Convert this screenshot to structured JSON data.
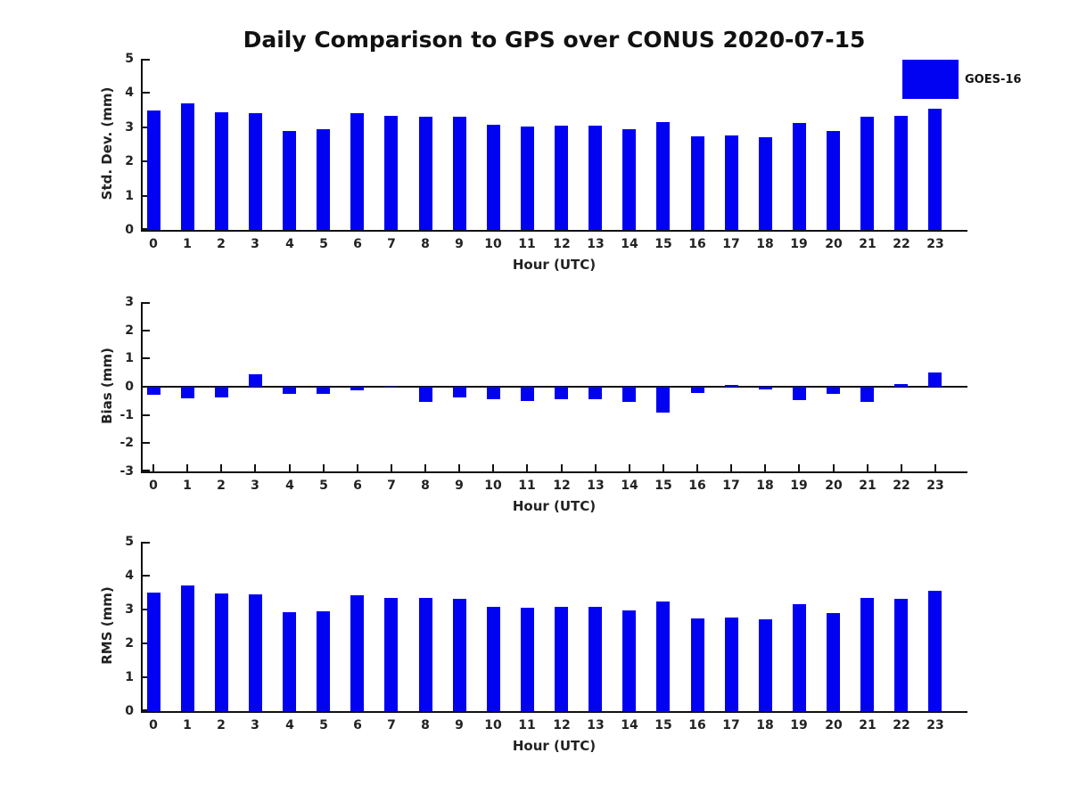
{
  "title": "Daily Comparison to GPS over CONUS 2020-07-15",
  "legend": {
    "label": "GOES-16",
    "color": "#0202f2",
    "position": "top-right"
  },
  "colors": {
    "bar": "#0202f2",
    "axis": "#111111",
    "text": "#111111",
    "background": "#ffffff"
  },
  "chart_data": [
    {
      "type": "bar",
      "title": "",
      "ylabel": "Std. Dev. (mm)",
      "xlabel": "Hour (UTC)",
      "ylim": [
        0,
        5
      ],
      "yticks": [
        0,
        1,
        2,
        3,
        4,
        5
      ],
      "grid": false,
      "categories": [
        0,
        1,
        2,
        3,
        4,
        5,
        6,
        7,
        8,
        9,
        10,
        11,
        12,
        13,
        14,
        15,
        16,
        17,
        18,
        19,
        20,
        21,
        22,
        23
      ],
      "series": [
        {
          "name": "GOES-16",
          "values": [
            3.5,
            3.7,
            3.45,
            3.42,
            2.9,
            2.95,
            3.42,
            3.33,
            3.31,
            3.3,
            3.07,
            3.01,
            3.04,
            3.04,
            2.93,
            3.14,
            2.74,
            2.75,
            2.71,
            3.12,
            2.89,
            3.31,
            3.34,
            3.53
          ]
        }
      ]
    },
    {
      "type": "bar",
      "title": "",
      "ylabel": "Bias (mm)",
      "xlabel": "Hour (UTC)",
      "ylim": [
        -3,
        3
      ],
      "yticks": [
        -3,
        -2,
        -1,
        0,
        1,
        2,
        3
      ],
      "grid": false,
      "categories": [
        0,
        1,
        2,
        3,
        4,
        5,
        6,
        7,
        8,
        9,
        10,
        11,
        12,
        13,
        14,
        15,
        16,
        17,
        18,
        19,
        20,
        21,
        22,
        23
      ],
      "series": [
        {
          "name": "GOES-16",
          "values": [
            -0.28,
            -0.4,
            -0.38,
            0.45,
            -0.25,
            -0.25,
            -0.13,
            -0.03,
            -0.55,
            -0.37,
            -0.43,
            -0.5,
            -0.45,
            -0.45,
            -0.53,
            -0.93,
            -0.22,
            0.07,
            -0.11,
            -0.46,
            -0.25,
            -0.53,
            0.08,
            0.52
          ]
        }
      ]
    },
    {
      "type": "bar",
      "title": "",
      "ylabel": "RMS (mm)",
      "xlabel": "Hour (UTC)",
      "ylim": [
        0,
        5
      ],
      "yticks": [
        0,
        1,
        2,
        3,
        4,
        5
      ],
      "grid": false,
      "categories": [
        0,
        1,
        2,
        3,
        4,
        5,
        6,
        7,
        8,
        9,
        10,
        11,
        12,
        13,
        14,
        15,
        16,
        17,
        18,
        19,
        20,
        21,
        22,
        23
      ],
      "series": [
        {
          "name": "GOES-16",
          "values": [
            3.51,
            3.72,
            3.47,
            3.44,
            2.91,
            2.96,
            3.42,
            3.34,
            3.35,
            3.32,
            3.09,
            3.05,
            3.07,
            3.07,
            2.97,
            3.25,
            2.74,
            2.76,
            2.72,
            3.15,
            2.9,
            3.35,
            3.31,
            3.55
          ]
        }
      ]
    }
  ]
}
